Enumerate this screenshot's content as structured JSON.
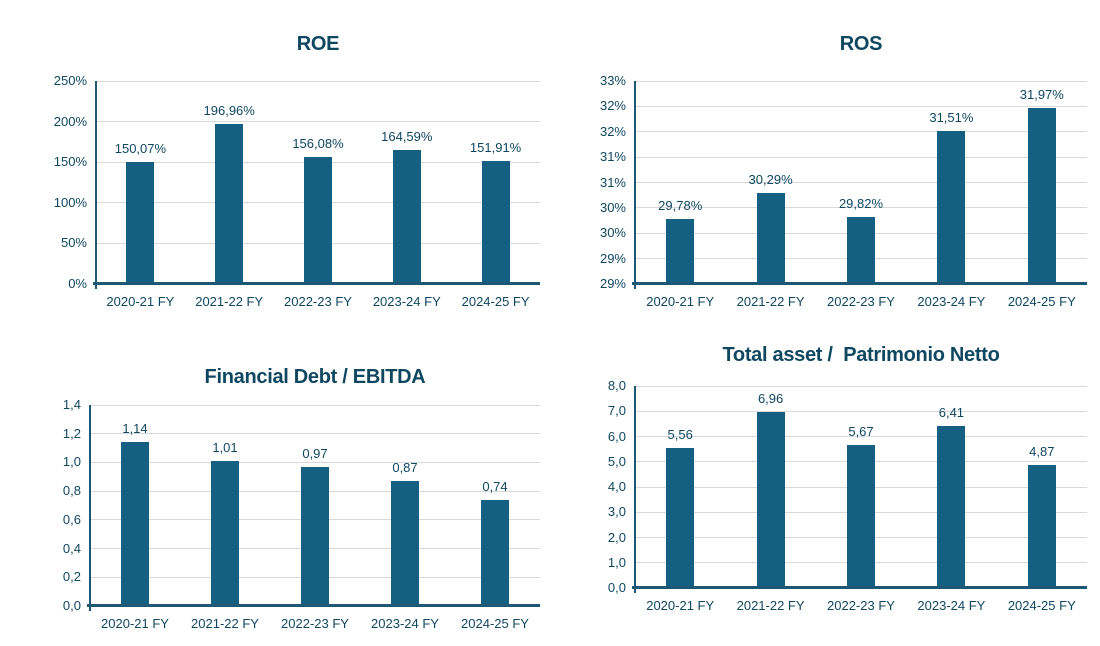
{
  "colors": {
    "background": "#FFFFFF",
    "bar": "#156082",
    "text": "#0F4761",
    "axis": "#1E5875",
    "gridline": "#D9D9D9"
  },
  "chart_data": [
    {
      "id": "roe",
      "type": "bar",
      "title": "ROE",
      "categories": [
        "2020-21 FY",
        "2021-22 FY",
        "2022-23 FY",
        "2023-24 FY",
        "2024-25 FY"
      ],
      "values": [
        150.07,
        196.96,
        156.08,
        164.59,
        151.91
      ],
      "labels": [
        "150,07%",
        "196,96%",
        "156,08%",
        "164,59%",
        "151,91%"
      ],
      "ylim": [
        0,
        250
      ],
      "yticks": {
        "values": [
          0,
          50,
          100,
          150,
          200,
          250
        ],
        "labels": [
          "0%",
          "50%",
          "100%",
          "150%",
          "200%",
          "250%"
        ]
      },
      "grid": true,
      "legend": "none"
    },
    {
      "id": "ros",
      "type": "bar",
      "title": "ROS",
      "categories": [
        "2020-21 FY",
        "2021-22 FY",
        "2022-23 FY",
        "2023-24 FY",
        "2024-25 FY"
      ],
      "values": [
        29.78,
        30.29,
        29.82,
        31.51,
        31.97
      ],
      "labels": [
        "29,78%",
        "30,29%",
        "29,82%",
        "31,51%",
        "31,97%"
      ],
      "ylim": [
        28.5,
        32.5
      ],
      "yticks": {
        "values": [
          28.5,
          29,
          29.5,
          30,
          30.5,
          31,
          31.5,
          32,
          32.5
        ],
        "labels": [
          "29%",
          "29%",
          "30%",
          "30%",
          "31%",
          "31%",
          "32%",
          "32%",
          "33%"
        ]
      },
      "grid": true,
      "legend": "none"
    },
    {
      "id": "fde",
      "type": "bar",
      "title": "Financial Debt / EBITDA",
      "categories": [
        "2020-21 FY",
        "2021-22 FY",
        "2022-23 FY",
        "2023-24 FY",
        "2024-25 FY"
      ],
      "values": [
        1.14,
        1.01,
        0.97,
        0.87,
        0.74
      ],
      "labels": [
        "1,14",
        "1,01",
        "0,97",
        "0,87",
        "0,74"
      ],
      "ylim": [
        0,
        1.4
      ],
      "yticks": {
        "values": [
          0,
          0.2,
          0.4,
          0.6,
          0.8,
          1.0,
          1.2,
          1.4
        ],
        "labels": [
          "0,0",
          "0,2",
          "0,4",
          "0,6",
          "0,8",
          "1,0",
          "1,2",
          "1,4"
        ]
      },
      "grid": true,
      "legend": "none"
    },
    {
      "id": "tap",
      "type": "bar",
      "title": "Total asset /  Patrimonio Netto",
      "categories": [
        "2020-21 FY",
        "2021-22 FY",
        "2022-23 FY",
        "2023-24 FY",
        "2024-25 FY"
      ],
      "values": [
        5.56,
        6.96,
        5.67,
        6.41,
        4.87
      ],
      "labels": [
        "5,56",
        "6,96",
        "5,67",
        "6,41",
        "4,87"
      ],
      "ylim": [
        0,
        8
      ],
      "yticks": {
        "values": [
          0,
          1,
          2,
          3,
          4,
          5,
          6,
          7,
          8
        ],
        "labels": [
          "0,0",
          "1,0",
          "2,0",
          "3,0",
          "4,0",
          "5,0",
          "6,0",
          "7,0",
          "8,0"
        ]
      },
      "grid": true,
      "legend": "none"
    }
  ]
}
